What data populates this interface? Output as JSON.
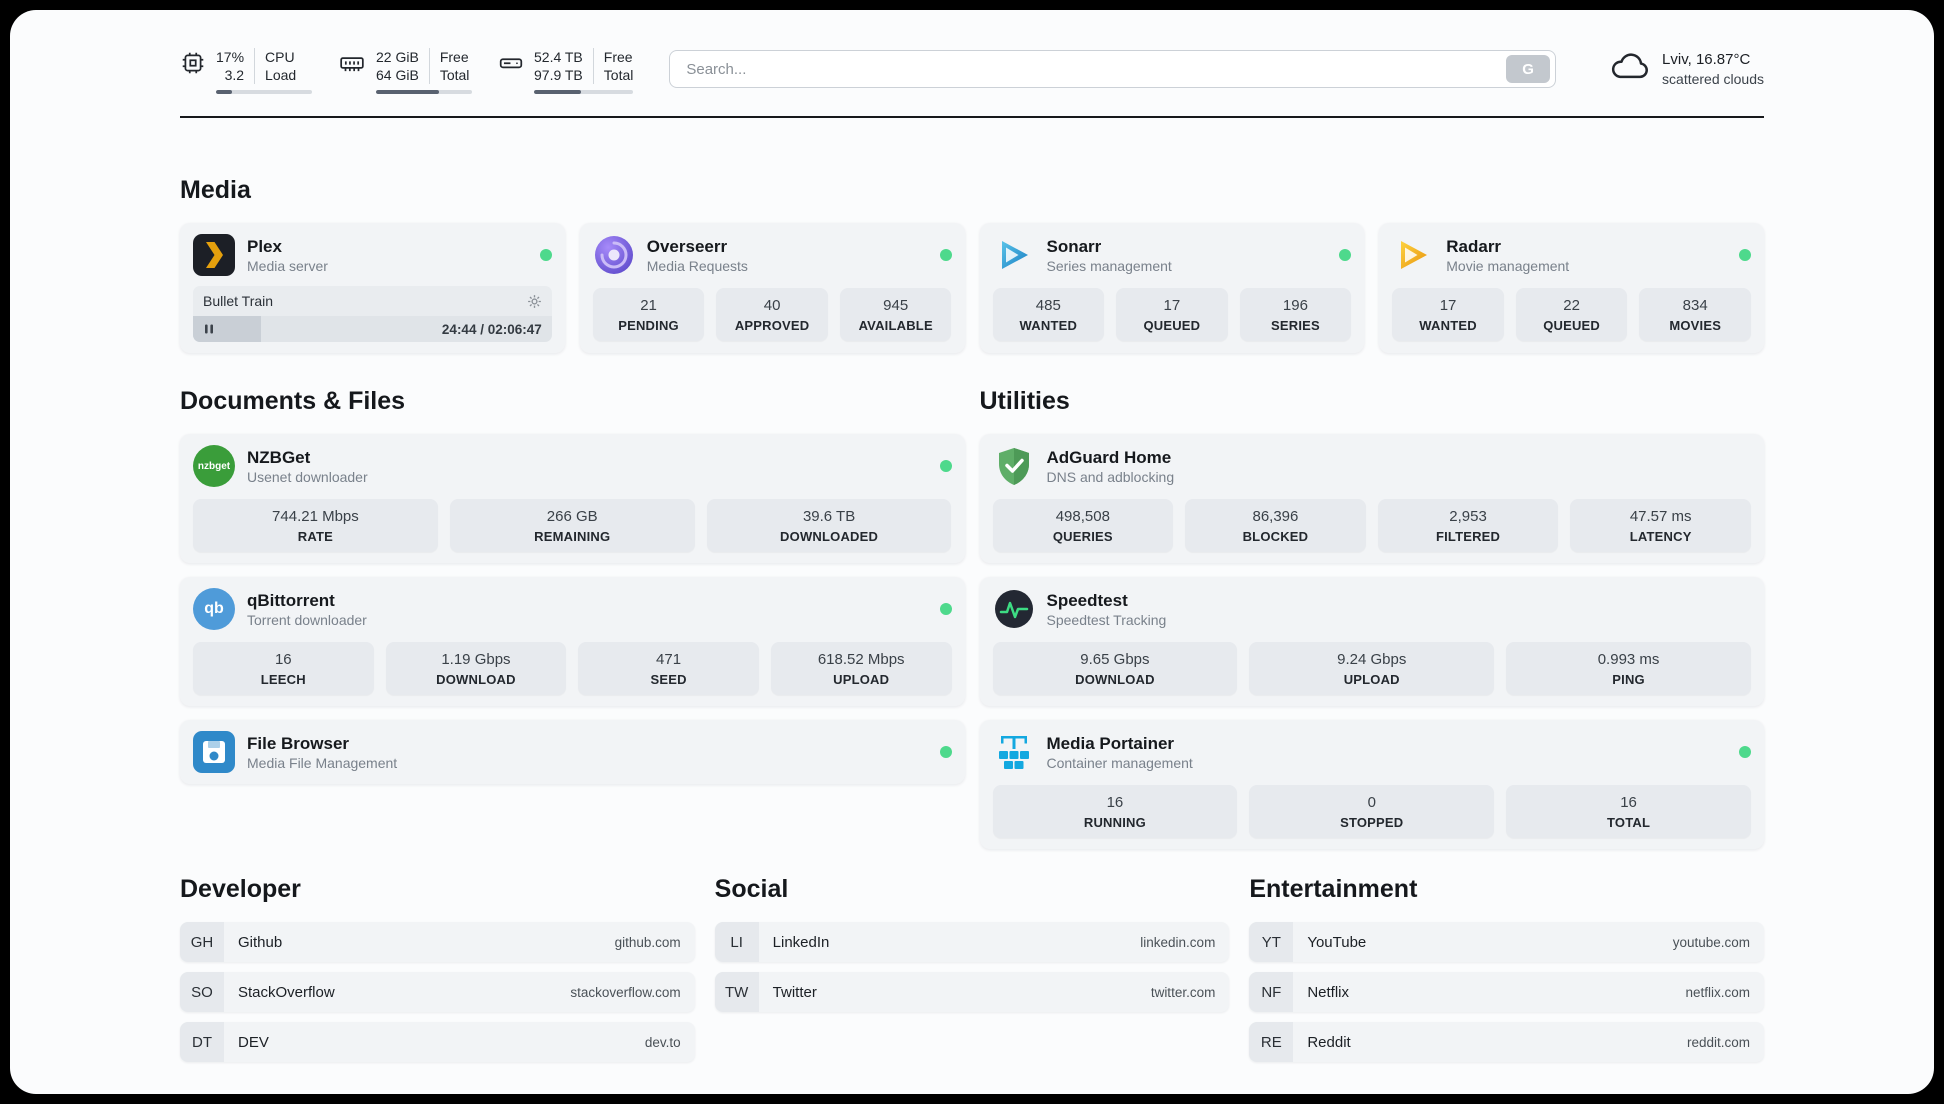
{
  "colors": {
    "status_online": "#4ed98c",
    "plex_accent": "#e5a00d",
    "sonarr_accent": "#2e9fd6",
    "radarr_accent": "#f0a11a",
    "nzbget_accent": "#3a9d3a",
    "qbittorrent_accent": "#4f9bd9",
    "adguard_accent": "#55a35e",
    "speedtest_wave": "#3ddc84",
    "portainer_accent": "#13a8e0"
  },
  "header": {
    "cpu": {
      "percent": "17%",
      "load": "3.2",
      "label_top": "CPU",
      "label_bottom": "Load",
      "progress": 17
    },
    "ram": {
      "free": "22 GiB",
      "total": "64 GiB",
      "label_top": "Free",
      "label_bottom": "Total",
      "progress": 66
    },
    "disk": {
      "free": "52.4 TB",
      "total": "97.9 TB",
      "label_top": "Free",
      "label_bottom": "Total",
      "progress": 47
    },
    "search": {
      "placeholder": "Search...",
      "button": "G"
    },
    "weather": {
      "location": "Lviv, 16.87°C",
      "condition": "scattered clouds"
    }
  },
  "sections": {
    "media": "Media",
    "documents": "Documents & Files",
    "utilities": "Utilities",
    "developer": "Developer",
    "social": "Social",
    "entertainment": "Entertainment"
  },
  "apps": {
    "plex": {
      "name": "Plex",
      "subtitle": "Media server",
      "player": {
        "title": "Bullet Train",
        "time": "24:44 / 02:06:47",
        "progress": 19
      }
    },
    "overseerr": {
      "name": "Overseerr",
      "subtitle": "Media Requests",
      "stats": [
        {
          "value": "21",
          "label": "PENDING"
        },
        {
          "value": "40",
          "label": "APPROVED"
        },
        {
          "value": "945",
          "label": "AVAILABLE"
        }
      ]
    },
    "sonarr": {
      "name": "Sonarr",
      "subtitle": "Series management",
      "stats": [
        {
          "value": "485",
          "label": "WANTED"
        },
        {
          "value": "17",
          "label": "QUEUED"
        },
        {
          "value": "196",
          "label": "SERIES"
        }
      ]
    },
    "radarr": {
      "name": "Radarr",
      "subtitle": "Movie management",
      "stats": [
        {
          "value": "17",
          "label": "WANTED"
        },
        {
          "value": "22",
          "label": "QUEUED"
        },
        {
          "value": "834",
          "label": "MOVIES"
        }
      ]
    },
    "nzbget": {
      "name": "NZBGet",
      "subtitle": "Usenet downloader",
      "stats": [
        {
          "value": "744.21 Mbps",
          "label": "RATE"
        },
        {
          "value": "266 GB",
          "label": "REMAINING"
        },
        {
          "value": "39.6 TB",
          "label": "DOWNLOADED"
        }
      ]
    },
    "qbittorrent": {
      "name": "qBittorrent",
      "subtitle": "Torrent downloader",
      "stats": [
        {
          "value": "16",
          "label": "LEECH"
        },
        {
          "value": "1.19 Gbps",
          "label": "DOWNLOAD"
        },
        {
          "value": "471",
          "label": "SEED"
        },
        {
          "value": "618.52 Mbps",
          "label": "UPLOAD"
        }
      ]
    },
    "filebrowser": {
      "name": "File Browser",
      "subtitle": "Media File Management"
    },
    "adguard": {
      "name": "AdGuard Home",
      "subtitle": "DNS and adblocking",
      "stats": [
        {
          "value": "498,508",
          "label": "QUERIES"
        },
        {
          "value": "86,396",
          "label": "BLOCKED"
        },
        {
          "value": "2,953",
          "label": "FILTERED"
        },
        {
          "value": "47.57 ms",
          "label": "LATENCY"
        }
      ]
    },
    "speedtest": {
      "name": "Speedtest",
      "subtitle": "Speedtest Tracking",
      "stats": [
        {
          "value": "9.65 Gbps",
          "label": "DOWNLOAD"
        },
        {
          "value": "9.24 Gbps",
          "label": "UPLOAD"
        },
        {
          "value": "0.993 ms",
          "label": "PING"
        }
      ]
    },
    "portainer": {
      "name": "Media Portainer",
      "subtitle": "Container management",
      "stats": [
        {
          "value": "16",
          "label": "RUNNING"
        },
        {
          "value": "0",
          "label": "STOPPED"
        },
        {
          "value": "16",
          "label": "TOTAL"
        }
      ]
    }
  },
  "icon_labels": {
    "nzbget": "nzbget",
    "qbittorrent": "qb"
  },
  "bookmarks": {
    "developer": [
      {
        "abbr": "GH",
        "name": "Github",
        "url": "github.com"
      },
      {
        "abbr": "SO",
        "name": "StackOverflow",
        "url": "stackoverflow.com"
      },
      {
        "abbr": "DT",
        "name": "DEV",
        "url": "dev.to"
      }
    ],
    "social": [
      {
        "abbr": "LI",
        "name": "LinkedIn",
        "url": "linkedin.com"
      },
      {
        "abbr": "TW",
        "name": "Twitter",
        "url": "twitter.com"
      }
    ],
    "entertainment": [
      {
        "abbr": "YT",
        "name": "YouTube",
        "url": "youtube.com"
      },
      {
        "abbr": "NF",
        "name": "Netflix",
        "url": "netflix.com"
      },
      {
        "abbr": "RE",
        "name": "Reddit",
        "url": "reddit.com"
      }
    ]
  }
}
